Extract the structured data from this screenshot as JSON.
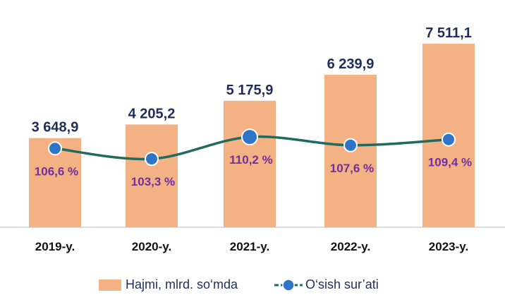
{
  "chart_data": {
    "type": "bar",
    "categories": [
      "2019-y.",
      "2020-y.",
      "2021-y.",
      "2022-y.",
      "2023-y."
    ],
    "series": [
      {
        "name": "Hajmi, mlrd. so‘mda",
        "type": "bar",
        "values": [
          3648.9,
          4205.2,
          5175.9,
          6239.9,
          7511.1
        ],
        "labels": [
          "3 648,9",
          "4 205,2",
          "5 175,9",
          "6 239,9",
          "7 511,1"
        ],
        "color": "#f4b183"
      },
      {
        "name": "O‘sish sur’ati",
        "type": "line",
        "values": [
          106.6,
          103.3,
          110.2,
          107.6,
          109.4
        ],
        "labels": [
          "106,6 %",
          "103,3 %",
          "110,2 %",
          "107,6 %",
          "109,4 %"
        ],
        "color": "#1f6b5e",
        "marker_color": "#2e75c8"
      }
    ],
    "ylim": [
      0,
      8000
    ],
    "grid": false,
    "legend_position": "bottom"
  },
  "legend": {
    "bar_label": "Hajmi, mlrd. so‘mda",
    "line_label": "O‘sish sur’ati"
  }
}
